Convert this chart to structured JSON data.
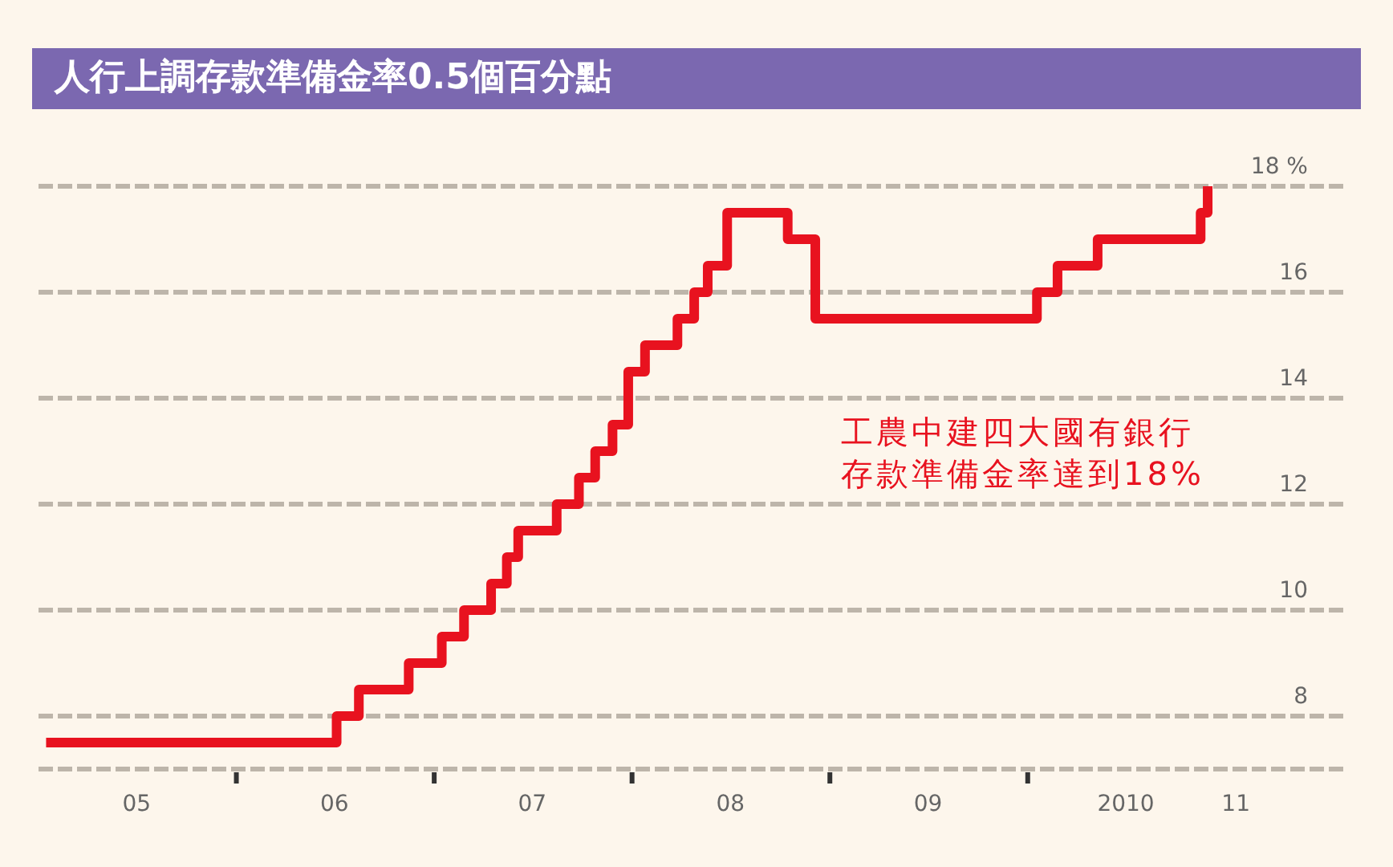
{
  "chart_data": {
    "type": "step",
    "title": "人行上調存款準備金率0.5個百分點",
    "x": [
      "2005-01-15",
      "2006-07-05",
      "2006-08-15",
      "2006-11-15",
      "2007-01-15",
      "2007-02-25",
      "2007-04-16",
      "2007-05-15",
      "2007-06-05",
      "2007-08-15",
      "2007-09-25",
      "2007-10-25",
      "2007-11-26",
      "2007-12-25",
      "2008-01-25",
      "2008-03-25",
      "2008-04-25",
      "2008-05-20",
      "2008-06-25",
      "2008-10-15",
      "2008-12-05",
      "2010-01-18",
      "2010-02-25",
      "2010-05-10",
      "2010-11-16",
      "2010-11-29"
    ],
    "values": [
      7.5,
      8.0,
      8.5,
      9.0,
      9.5,
      10.0,
      10.5,
      11.0,
      11.5,
      12.0,
      12.5,
      13.0,
      13.5,
      14.5,
      15.0,
      15.5,
      16.0,
      16.5,
      17.5,
      17.0,
      15.5,
      16.0,
      16.5,
      17.0,
      17.5,
      18.0
    ],
    "color": "#e8121f",
    "xlim": [
      "2005-01-01",
      "2011-08-15"
    ],
    "xticks": [
      {
        "value": "2005-07-01",
        "label": "05"
      },
      {
        "value": "2006-01-01",
        "label": null
      },
      {
        "value": "2006-07-01",
        "label": "06"
      },
      {
        "value": "2007-01-01",
        "label": null
      },
      {
        "value": "2007-07-01",
        "label": "07"
      },
      {
        "value": "2008-01-01",
        "label": null
      },
      {
        "value": "2008-07-01",
        "label": "08"
      },
      {
        "value": "2009-01-01",
        "label": null
      },
      {
        "value": "2009-07-01",
        "label": "09"
      },
      {
        "value": "2010-01-01",
        "label": null
      },
      {
        "value": "2010-07-01",
        "label": "2010"
      },
      {
        "value": "2011-01-20",
        "label": "11"
      }
    ],
    "ylim": [
      7,
      18
    ],
    "yticks": [
      {
        "value": 7,
        "label": null
      },
      8,
      10,
      12,
      14,
      16,
      {
        "value": 18,
        "label": "18 %"
      }
    ],
    "grid": "y",
    "line_style": "solid",
    "annotations": [
      "工農中建四大國有銀行存款準備金率達到18%"
    ]
  }
}
